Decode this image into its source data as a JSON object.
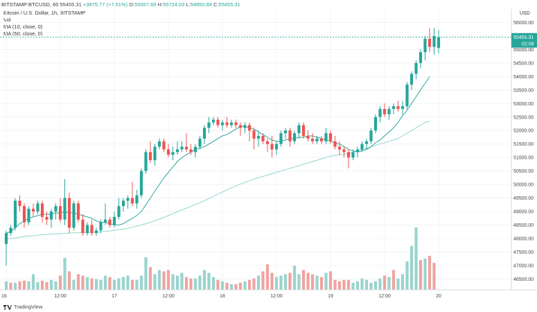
{
  "header": {
    "symbol": "BITSTAMP:BTCUSD, 60",
    "last": "55455.31",
    "change": "+3875.77 (+7.51%)",
    "o_label": "O:",
    "o": "55057.69",
    "h_label": "H:",
    "h": "55724.03",
    "l_label": "L:",
    "l": "54850.84",
    "c_label": "C:",
    "c": "55455.31"
  },
  "legend": {
    "title": "Bitcoin / U.S. Dollar, 1h, BITSTAMP",
    "vol": "Vol",
    "ma10": "MA (10, close, 0)",
    "ma50": "MA (50, close, 0)"
  },
  "price_tag": {
    "value": "55455.31",
    "countdown": "02:08"
  },
  "footer": {
    "brand": "TradingView"
  },
  "colors": {
    "up": "#26a69a",
    "down": "#ef5350",
    "vol_up": "#99d4ce",
    "vol_down": "#f0a3a0",
    "ma10": "#26a69a",
    "ma50": "#8fd6cd"
  },
  "chart_data": {
    "type": "candlestick",
    "currency": "USD",
    "y_ticks": [
      46500,
      47000,
      47500,
      48000,
      48500,
      49000,
      49500,
      50000,
      50500,
      51000,
      51500,
      52000,
      52500,
      53000,
      53500,
      54000,
      54500,
      55000,
      55500,
      56000
    ],
    "x_ticks": [
      {
        "label": "16",
        "at": 0
      },
      {
        "label": "12:00",
        "at": 12
      },
      {
        "label": "17",
        "at": 24
      },
      {
        "label": "12:00",
        "at": 36
      },
      {
        "label": "18",
        "at": 48
      },
      {
        "label": "12:00",
        "at": 60
      },
      {
        "label": "19",
        "at": 72
      },
      {
        "label": "12:00",
        "at": 84
      },
      {
        "label": "20",
        "at": 96
      }
    ],
    "candles": [
      [
        47800,
        48300,
        47000,
        48200
      ],
      [
        48200,
        48500,
        48100,
        48400
      ],
      [
        48400,
        49500,
        48300,
        49400
      ],
      [
        49400,
        49600,
        49000,
        49200
      ],
      [
        49200,
        49300,
        48400,
        48600
      ],
      [
        48600,
        49200,
        48500,
        49100
      ],
      [
        49100,
        49300,
        48800,
        49000
      ],
      [
        49000,
        49400,
        48900,
        49300
      ],
      [
        49300,
        49400,
        48600,
        48800
      ],
      [
        48800,
        49000,
        48500,
        48700
      ],
      [
        48700,
        49100,
        48400,
        49000
      ],
      [
        49000,
        49300,
        48700,
        49200
      ],
      [
        49200,
        49500,
        48600,
        48700
      ],
      [
        48700,
        50200,
        48500,
        49500
      ],
      [
        49500,
        49700,
        48200,
        48400
      ],
      [
        48400,
        49400,
        48300,
        49300
      ],
      [
        49300,
        49400,
        48600,
        48700
      ],
      [
        48700,
        48900,
        48100,
        48200
      ],
      [
        48200,
        48600,
        48100,
        48500
      ],
      [
        48500,
        48700,
        48100,
        48200
      ],
      [
        48200,
        48400,
        48100,
        48300
      ],
      [
        48300,
        48700,
        48200,
        48600
      ],
      [
        48600,
        49300,
        48500,
        48700
      ],
      [
        48700,
        48800,
        48400,
        48500
      ],
      [
        48500,
        49000,
        48400,
        48800
      ],
      [
        48800,
        49500,
        48700,
        49200
      ],
      [
        49200,
        49500,
        49000,
        49400
      ],
      [
        49400,
        49600,
        49100,
        49500
      ],
      [
        49500,
        50100,
        49200,
        49300
      ],
      [
        49300,
        49800,
        49100,
        49600
      ],
      [
        49600,
        50600,
        49500,
        50500
      ],
      [
        50500,
        51300,
        50400,
        51200
      ],
      [
        51200,
        51600,
        50800,
        50900
      ],
      [
        50900,
        51500,
        50700,
        51400
      ],
      [
        51400,
        51700,
        51300,
        51600
      ],
      [
        51600,
        51700,
        51200,
        51300
      ],
      [
        51300,
        51500,
        51000,
        51100
      ],
      [
        51100,
        51400,
        50900,
        51200
      ],
      [
        51200,
        51600,
        51100,
        51300
      ],
      [
        51300,
        51600,
        51200,
        51400
      ],
      [
        51400,
        51900,
        51200,
        51300
      ],
      [
        51300,
        51500,
        51100,
        51200
      ],
      [
        51200,
        51500,
        51000,
        51400
      ],
      [
        51400,
        51800,
        51300,
        51700
      ],
      [
        51700,
        52200,
        51500,
        52100
      ],
      [
        52100,
        52500,
        51900,
        52300
      ],
      [
        52300,
        52500,
        52200,
        52400
      ],
      [
        52400,
        52500,
        52100,
        52200
      ],
      [
        52200,
        52400,
        52000,
        52300
      ],
      [
        52300,
        52500,
        52100,
        52200
      ],
      [
        52200,
        52400,
        52100,
        52300
      ],
      [
        52300,
        52400,
        52100,
        52200
      ],
      [
        52200,
        52300,
        51800,
        52100
      ],
      [
        52100,
        52300,
        51900,
        52200
      ],
      [
        52200,
        52300,
        51600,
        52000
      ],
      [
        52000,
        52100,
        51300,
        51700
      ],
      [
        51700,
        52000,
        51400,
        51800
      ],
      [
        51800,
        51900,
        51500,
        51600
      ],
      [
        51600,
        51700,
        51200,
        51500
      ],
      [
        51500,
        51800,
        51000,
        51300
      ],
      [
        51300,
        51600,
        51100,
        51500
      ],
      [
        51500,
        52000,
        51400,
        51900
      ],
      [
        51900,
        52100,
        51700,
        52000
      ],
      [
        52000,
        52100,
        51400,
        51600
      ],
      [
        51600,
        52000,
        51500,
        51900
      ],
      [
        51900,
        52300,
        51700,
        52200
      ],
      [
        52200,
        52300,
        51700,
        51800
      ],
      [
        51800,
        52000,
        51600,
        51700
      ],
      [
        51700,
        51900,
        51500,
        51600
      ],
      [
        51600,
        51800,
        51500,
        51700
      ],
      [
        51700,
        51800,
        51500,
        51600
      ],
      [
        51600,
        52100,
        51500,
        51900
      ],
      [
        51900,
        52000,
        51500,
        51600
      ],
      [
        51600,
        51800,
        51300,
        51400
      ],
      [
        51400,
        51600,
        51100,
        51300
      ],
      [
        51300,
        51400,
        51000,
        51200
      ],
      [
        51200,
        51300,
        50600,
        51000
      ],
      [
        51000,
        51300,
        50900,
        51200
      ],
      [
        51200,
        51400,
        51000,
        51300
      ],
      [
        51300,
        51600,
        51200,
        51500
      ],
      [
        51500,
        51700,
        51300,
        51600
      ],
      [
        51600,
        52100,
        51500,
        52000
      ],
      [
        52000,
        52600,
        51900,
        52500
      ],
      [
        52500,
        52900,
        52300,
        52800
      ],
      [
        52800,
        53000,
        52500,
        52600
      ],
      [
        52600,
        52900,
        52400,
        52800
      ],
      [
        52800,
        53000,
        52600,
        52900
      ],
      [
        52900,
        53100,
        52700,
        52800
      ],
      [
        52800,
        53100,
        52600,
        52900
      ],
      [
        52900,
        53800,
        52800,
        53700
      ],
      [
        53700,
        54200,
        53500,
        54100
      ],
      [
        54100,
        54600,
        53900,
        54500
      ],
      [
        54500,
        55000,
        54300,
        54900
      ],
      [
        54900,
        55500,
        54600,
        55400
      ],
      [
        55400,
        55800,
        54900,
        55100
      ],
      [
        55100,
        55800,
        54800,
        55500
      ],
      [
        55057.69,
        55724.03,
        54850.84,
        55455.31
      ]
    ],
    "volume": [
      12,
      10,
      10,
      12,
      13,
      12,
      22,
      11,
      13,
      11,
      14,
      12,
      20,
      45,
      26,
      14,
      22,
      20,
      18,
      16,
      15,
      14,
      20,
      18,
      14,
      16,
      18,
      20,
      14,
      14,
      20,
      46,
      32,
      22,
      28,
      26,
      28,
      22,
      20,
      24,
      18,
      16,
      16,
      20,
      28,
      24,
      18,
      14,
      12,
      10,
      8,
      8,
      10,
      12,
      14,
      16,
      20,
      26,
      36,
      24,
      18,
      20,
      22,
      24,
      34,
      22,
      28,
      24,
      22,
      20,
      18,
      24,
      26,
      14,
      12,
      14,
      14,
      10,
      12,
      16,
      14,
      10,
      12,
      16,
      20,
      18,
      28,
      16,
      22,
      40,
      62,
      88,
      42,
      44,
      48,
      38
    ],
    "volume_up": [
      true,
      false,
      true,
      false,
      false,
      true,
      true,
      true,
      false,
      false,
      true,
      true,
      false,
      true,
      false,
      true,
      false,
      false,
      true,
      false,
      true,
      true,
      true,
      false,
      true,
      true,
      true,
      true,
      false,
      true,
      true,
      true,
      false,
      true,
      true,
      false,
      false,
      true,
      true,
      true,
      false,
      false,
      true,
      true,
      true,
      true,
      true,
      false,
      true,
      false,
      true,
      false,
      false,
      true,
      false,
      false,
      true,
      false,
      false,
      false,
      true,
      true,
      true,
      false,
      true,
      true,
      false,
      false,
      false,
      true,
      false,
      true,
      false,
      false,
      false,
      false,
      false,
      true,
      true,
      true,
      true,
      true,
      true,
      true,
      false,
      true,
      false,
      true,
      true,
      true,
      true,
      true,
      false,
      true,
      false
    ],
    "ma10": [
      48200,
      48250,
      48400,
      48550,
      48650,
      48750,
      48800,
      48850,
      48900,
      48900,
      48900,
      48950,
      48950,
      49000,
      48950,
      48950,
      48900,
      48850,
      48800,
      48750,
      48650,
      48600,
      48600,
      48550,
      48500,
      48500,
      48550,
      48650,
      48750,
      48850,
      49000,
      49250,
      49500,
      49750,
      50000,
      50250,
      50450,
      50650,
      50850,
      51000,
      51100,
      51200,
      51300,
      51350,
      51400,
      51500,
      51600,
      51700,
      51800,
      51850,
      51950,
      52050,
      52150,
      52150,
      52100,
      52050,
      51950,
      51850,
      51750,
      51650,
      51600,
      51600,
      51650,
      51700,
      51700,
      51750,
      51750,
      51800,
      51800,
      51750,
      51700,
      51650,
      51600,
      51550,
      51500,
      51400,
      51300,
      51250,
      51200,
      51250,
      51300,
      51400,
      51550,
      51650,
      51800,
      51950,
      52100,
      52300,
      52550,
      52750,
      53000,
      53250,
      53500,
      53750,
      54000
    ],
    "ma50": [
      48000,
      48000,
      48020,
      48050,
      48070,
      48090,
      48100,
      48120,
      48140,
      48150,
      48160,
      48170,
      48180,
      48190,
      48200,
      48210,
      48210,
      48220,
      48220,
      48230,
      48240,
      48250,
      48270,
      48280,
      48300,
      48320,
      48350,
      48380,
      48420,
      48460,
      48500,
      48550,
      48600,
      48650,
      48720,
      48780,
      48850,
      48920,
      49000,
      49060,
      49120,
      49190,
      49260,
      49330,
      49400,
      49480,
      49560,
      49640,
      49720,
      49800,
      49880,
      49950,
      50020,
      50080,
      50140,
      50200,
      50250,
      50300,
      50350,
      50400,
      50450,
      50500,
      50550,
      50600,
      50650,
      50700,
      50750,
      50800,
      50850,
      50900,
      50950,
      51000,
      51050,
      51080,
      51100,
      51120,
      51150,
      51200,
      51250,
      51300,
      51350,
      51400,
      51450,
      51500,
      51550,
      51600,
      51650,
      51700,
      51800,
      51900,
      52000,
      52100,
      52200,
      52300,
      52350
    ]
  }
}
